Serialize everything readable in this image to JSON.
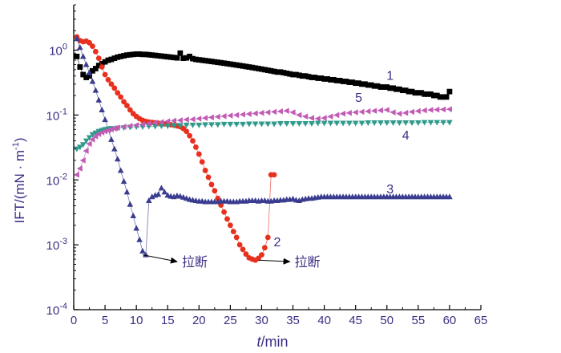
{
  "chart_data": {
    "type": "scatter",
    "xlabel_italic": "t",
    "xlabel_rest": "/min",
    "ylabel": "IFT/(mN · m",
    "ylabel_sup": "-1",
    "ylabel_close": ")",
    "x_scale": "linear",
    "y_scale": "log",
    "xlim": [
      0,
      65
    ],
    "ylim": [
      0.0001,
      5
    ],
    "grid": false,
    "legend": "none; curves labelled by number next to each line",
    "x_ticks": [
      0,
      5,
      10,
      15,
      20,
      25,
      30,
      35,
      40,
      45,
      50,
      55,
      60,
      65
    ],
    "y_ticks": [
      {
        "value": 1,
        "base": "10",
        "exp": "0"
      },
      {
        "value": 0.1,
        "base": "10",
        "exp": "-1"
      },
      {
        "value": 0.01,
        "base": "10",
        "exp": "-2"
      },
      {
        "value": 0.001,
        "base": "10",
        "exp": "-3"
      },
      {
        "value": 0.0001,
        "base": "10",
        "exp": "-4"
      }
    ],
    "series": [
      {
        "name": "1",
        "marker": "square",
        "color": "#000000",
        "x": [
          0.5,
          1.0,
          1.5,
          2.0,
          2.5,
          3.0,
          3.5,
          4.0,
          4.5,
          5.0,
          5.5,
          6.0,
          6.5,
          7.0,
          7.5,
          8.0,
          8.5,
          9.0,
          9.5,
          10.0,
          10.5,
          11.0,
          11.5,
          12.0,
          12.5,
          13.0,
          13.5,
          14.0,
          14.5,
          15.0,
          15.5,
          16.0,
          16.5,
          17.0,
          17.5,
          18.0,
          18.5,
          19.0,
          19.5,
          20.0,
          20.5,
          21.0,
          21.5,
          22.0,
          22.5,
          23.0,
          23.5,
          24.0,
          24.5,
          25.0,
          25.5,
          26.0,
          26.5,
          27.0,
          27.5,
          28.0,
          28.5,
          29.0,
          29.5,
          30.0,
          30.5,
          31.0,
          31.5,
          32.0,
          32.5,
          33.0,
          33.5,
          34.0,
          34.5,
          35.0,
          35.5,
          36.0,
          36.5,
          37.0,
          37.5,
          38.0,
          38.5,
          39.0,
          39.5,
          40.0,
          40.5,
          41.0,
          41.5,
          42.0,
          42.5,
          43.0,
          43.5,
          44.0,
          44.5,
          45.0,
          45.5,
          46.0,
          46.5,
          47.0,
          47.5,
          48.0,
          48.5,
          49.0,
          49.5,
          50.0,
          50.5,
          51.0,
          51.5,
          52.0,
          52.5,
          53.0,
          53.5,
          54.0,
          54.5,
          55.0,
          55.5,
          56.0,
          56.5,
          57.0,
          57.5,
          58.0,
          58.5,
          59.0,
          59.5,
          60.0
        ],
        "y": [
          0.8,
          0.55,
          0.42,
          0.38,
          0.4,
          0.48,
          0.52,
          0.58,
          0.62,
          0.66,
          0.7,
          0.72,
          0.75,
          0.78,
          0.8,
          0.82,
          0.84,
          0.85,
          0.86,
          0.87,
          0.87,
          0.86,
          0.86,
          0.85,
          0.84,
          0.83,
          0.82,
          0.81,
          0.8,
          0.79,
          0.78,
          0.77,
          0.76,
          0.9,
          0.75,
          0.76,
          0.8,
          0.74,
          0.72,
          0.71,
          0.7,
          0.69,
          0.68,
          0.67,
          0.66,
          0.65,
          0.64,
          0.63,
          0.62,
          0.61,
          0.6,
          0.59,
          0.58,
          0.57,
          0.56,
          0.55,
          0.54,
          0.53,
          0.52,
          0.51,
          0.5,
          0.49,
          0.48,
          0.47,
          0.46,
          0.46,
          0.45,
          0.44,
          0.43,
          0.42,
          0.42,
          0.41,
          0.4,
          0.4,
          0.39,
          0.38,
          0.38,
          0.37,
          0.37,
          0.36,
          0.36,
          0.35,
          0.35,
          0.34,
          0.34,
          0.33,
          0.33,
          0.32,
          0.32,
          0.31,
          0.31,
          0.3,
          0.3,
          0.29,
          0.29,
          0.28,
          0.28,
          0.27,
          0.27,
          0.27,
          0.26,
          0.26,
          0.25,
          0.25,
          0.24,
          0.24,
          0.23,
          0.23,
          0.22,
          0.22,
          0.22,
          0.21,
          0.21,
          0.21,
          0.2,
          0.2,
          0.19,
          0.19,
          0.19,
          0.23
        ]
      },
      {
        "name": "2",
        "marker": "circle",
        "color": "#e8301e",
        "x": [
          0.5,
          1.0,
          1.5,
          2.0,
          2.5,
          3.0,
          3.5,
          4.0,
          4.5,
          5.0,
          5.5,
          6.0,
          6.5,
          7.0,
          7.5,
          8.0,
          8.5,
          9.0,
          9.5,
          10.0,
          10.5,
          11.0,
          11.5,
          12.0,
          12.5,
          13.0,
          13.5,
          14.0,
          14.5,
          15.0,
          15.5,
          16.0,
          16.5,
          17.0,
          17.5,
          18.0,
          18.5,
          19.0,
          19.5,
          20.0,
          20.5,
          21.0,
          21.5,
          22.0,
          22.5,
          23.0,
          23.5,
          24.0,
          24.5,
          25.0,
          25.5,
          26.0,
          26.5,
          27.0,
          27.5,
          28.0,
          28.5,
          29.0,
          29.5,
          30.0,
          30.5,
          31.0,
          31.5,
          32.0
        ],
        "y": [
          1.6,
          1.4,
          1.35,
          1.38,
          1.3,
          1.15,
          0.95,
          0.75,
          0.55,
          0.42,
          0.35,
          0.3,
          0.26,
          0.22,
          0.19,
          0.16,
          0.14,
          0.12,
          0.105,
          0.095,
          0.088,
          0.083,
          0.08,
          0.078,
          0.077,
          0.076,
          0.075,
          0.074,
          0.073,
          0.072,
          0.071,
          0.07,
          0.068,
          0.066,
          0.062,
          0.056,
          0.048,
          0.04,
          0.032,
          0.025,
          0.019,
          0.014,
          0.011,
          0.0085,
          0.0068,
          0.0052,
          0.0041,
          0.0032,
          0.0025,
          0.002,
          0.0016,
          0.0013,
          0.001,
          0.00085,
          0.00072,
          0.00063,
          0.0006,
          0.00058,
          0.00062,
          0.0007,
          0.0009,
          0.0013,
          0.012,
          0.012
        ]
      },
      {
        "name": "3",
        "marker": "triangle-up",
        "color": "#3a3d8f",
        "x": [
          0.5,
          1.0,
          1.5,
          2.0,
          2.5,
          3.0,
          3.5,
          4.0,
          4.5,
          5.0,
          5.5,
          6.0,
          6.5,
          7.0,
          7.5,
          8.0,
          8.5,
          9.0,
          9.5,
          10.0,
          10.5,
          11.0,
          11.5,
          12.0,
          12.5,
          13.0,
          13.5,
          14.0,
          14.5,
          15.0,
          15.5,
          16.0,
          16.5,
          17.0,
          17.5,
          18.0,
          18.5,
          19.0,
          19.5,
          20.0,
          20.5,
          21.0,
          21.5,
          22.0,
          22.5,
          23.0,
          23.5,
          24.0,
          24.5,
          25.0,
          25.5,
          26.0,
          26.5,
          27.0,
          27.5,
          28.0,
          28.5,
          29.0,
          29.5,
          30.0,
          30.5,
          31.0,
          31.5,
          32.0,
          32.5,
          33.0,
          33.5,
          34.0,
          34.5,
          35.0,
          35.5,
          36.0,
          36.5,
          37.0,
          37.5,
          38.0,
          38.5,
          39.0,
          39.5,
          40.0,
          40.5,
          41.0,
          41.5,
          42.0,
          42.5,
          43.0,
          43.5,
          44.0,
          44.5,
          45.0,
          45.5,
          46.0,
          46.5,
          47.0,
          47.5,
          48.0,
          48.5,
          49.0,
          49.5,
          50.0,
          50.5,
          51.0,
          51.5,
          52.0,
          52.5,
          53.0,
          53.5,
          54.0,
          54.5,
          55.0,
          55.5,
          56.0,
          56.5,
          57.0,
          57.5,
          58.0,
          58.5,
          59.0,
          59.5,
          60.0
        ],
        "y": [
          1.5,
          1.1,
          0.8,
          0.6,
          0.45,
          0.33,
          0.24,
          0.17,
          0.12,
          0.085,
          0.06,
          0.042,
          0.03,
          0.021,
          0.014,
          0.0095,
          0.0065,
          0.0042,
          0.0028,
          0.0018,
          0.0012,
          0.0008,
          0.0007,
          0.0048,
          0.0055,
          0.0058,
          0.006,
          0.0075,
          0.0065,
          0.0058,
          0.0056,
          0.0055,
          0.0057,
          0.0056,
          0.0054,
          0.0052,
          0.005,
          0.0049,
          0.0048,
          0.0047,
          0.0047,
          0.0046,
          0.0046,
          0.0046,
          0.0046,
          0.0046,
          0.0047,
          0.0047,
          0.0047,
          0.0046,
          0.0046,
          0.0046,
          0.0047,
          0.0047,
          0.0047,
          0.0048,
          0.0048,
          0.0048,
          0.0047,
          0.0048,
          0.0048,
          0.0047,
          0.0047,
          0.0048,
          0.0048,
          0.0049,
          0.0049,
          0.005,
          0.005,
          0.0051,
          0.0049,
          0.0048,
          0.005,
          0.0051,
          0.0052,
          0.0052,
          0.0053,
          0.0054,
          0.0055,
          0.0055,
          0.0055,
          0.0055,
          0.0055,
          0.0055,
          0.0055,
          0.0055,
          0.0055,
          0.0055,
          0.0055,
          0.0055,
          0.0055,
          0.0055,
          0.0055,
          0.0055,
          0.0055,
          0.0055,
          0.0055,
          0.0055,
          0.0055,
          0.0055,
          0.0055,
          0.0055,
          0.0055,
          0.0055,
          0.0055,
          0.0055,
          0.0055,
          0.0055,
          0.0055,
          0.0055,
          0.0055,
          0.0055,
          0.0055,
          0.0055,
          0.0055,
          0.0055,
          0.0055,
          0.0055,
          0.0055,
          0.0055
        ]
      },
      {
        "name": "4",
        "marker": "triangle-down",
        "color": "#2f9a8c",
        "x": [
          0.5,
          1.0,
          1.5,
          2.0,
          2.5,
          3.0,
          3.5,
          4.0,
          4.5,
          5.0,
          5.5,
          6.0,
          7.0,
          8.0,
          9.0,
          10.0,
          11.0,
          12.0,
          13.0,
          14.0,
          15.0,
          16.0,
          17.0,
          18.0,
          19.0,
          20.0,
          21.0,
          22.0,
          23.0,
          24.0,
          25.0,
          26.0,
          27.0,
          28.0,
          29.0,
          30.0,
          31.0,
          32.0,
          33.0,
          34.0,
          35.0,
          36.0,
          37.0,
          38.0,
          39.0,
          40.0,
          41.0,
          42.0,
          43.0,
          44.0,
          45.0,
          46.0,
          47.0,
          48.0,
          49.0,
          50.0,
          51.0,
          52.0,
          53.0,
          54.0,
          55.0,
          56.0,
          57.0,
          58.0,
          59.0,
          60.0
        ],
        "y": [
          0.03,
          0.032,
          0.035,
          0.04,
          0.045,
          0.05,
          0.053,
          0.056,
          0.058,
          0.06,
          0.061,
          0.062,
          0.063,
          0.064,
          0.065,
          0.066,
          0.066,
          0.067,
          0.067,
          0.068,
          0.068,
          0.069,
          0.069,
          0.07,
          0.07,
          0.07,
          0.071,
          0.071,
          0.071,
          0.072,
          0.072,
          0.072,
          0.072,
          0.073,
          0.073,
          0.073,
          0.073,
          0.073,
          0.074,
          0.074,
          0.074,
          0.074,
          0.074,
          0.074,
          0.075,
          0.075,
          0.075,
          0.075,
          0.075,
          0.075,
          0.075,
          0.075,
          0.076,
          0.076,
          0.076,
          0.076,
          0.076,
          0.076,
          0.076,
          0.076,
          0.076,
          0.077,
          0.077,
          0.077,
          0.077,
          0.077
        ]
      },
      {
        "name": "5",
        "marker": "triangle-left",
        "color": "#c15bb4",
        "x": [
          0.5,
          1.0,
          1.5,
          2.0,
          2.5,
          3.0,
          3.5,
          4.0,
          4.5,
          5.0,
          5.5,
          6.0,
          6.5,
          7.0,
          8.0,
          9.0,
          10.0,
          11.0,
          12.0,
          13.0,
          14.0,
          15.0,
          16.0,
          17.0,
          18.0,
          19.0,
          20.0,
          21.0,
          22.0,
          23.0,
          24.0,
          25.0,
          26.0,
          27.0,
          28.0,
          29.0,
          30.0,
          31.0,
          32.0,
          33.0,
          34.0,
          35.0,
          36.0,
          37.0,
          38.0,
          39.0,
          40.0,
          41.0,
          42.0,
          43.0,
          44.0,
          45.0,
          46.0,
          47.0,
          48.0,
          49.0,
          50.0,
          51.0,
          52.0,
          53.0,
          54.0,
          55.0,
          56.0,
          57.0,
          58.0,
          59.0,
          60.0
        ],
        "y": [
          0.012,
          0.015,
          0.02,
          0.028,
          0.036,
          0.042,
          0.047,
          0.051,
          0.054,
          0.056,
          0.058,
          0.06,
          0.062,
          0.064,
          0.066,
          0.068,
          0.07,
          0.072,
          0.074,
          0.076,
          0.078,
          0.08,
          0.082,
          0.083,
          0.085,
          0.086,
          0.088,
          0.09,
          0.092,
          0.094,
          0.096,
          0.098,
          0.1,
          0.102,
          0.104,
          0.106,
          0.108,
          0.11,
          0.112,
          0.114,
          0.116,
          0.11,
          0.1,
          0.095,
          0.09,
          0.088,
          0.09,
          0.095,
          0.1,
          0.105,
          0.108,
          0.11,
          0.112,
          0.114,
          0.116,
          0.118,
          0.12,
          0.11,
          0.105,
          0.108,
          0.112,
          0.115,
          0.118,
          0.12,
          0.121,
          0.122,
          0.123
        ]
      }
    ],
    "curve_labels": [
      {
        "text": "1",
        "at_x": 50.5,
        "at_y": 0.35
      },
      {
        "text": "2",
        "at_x": 32.5,
        "at_y": 0.00095
      },
      {
        "text": "3",
        "at_x": 50.5,
        "at_y": 0.0062
      },
      {
        "text": "4",
        "at_x": 53.0,
        "at_y": 0.042
      },
      {
        "text": "5",
        "at_x": 45.5,
        "at_y": 0.16
      }
    ],
    "annotations": [
      {
        "text": "拉断",
        "from_x": 11.0,
        "from_y": 0.0007,
        "to_x": 16.5,
        "to_y": 0.00055
      },
      {
        "text": "拉断",
        "from_x": 29.5,
        "from_y": 0.00058,
        "to_x": 34.5,
        "to_y": 0.00055
      }
    ]
  }
}
